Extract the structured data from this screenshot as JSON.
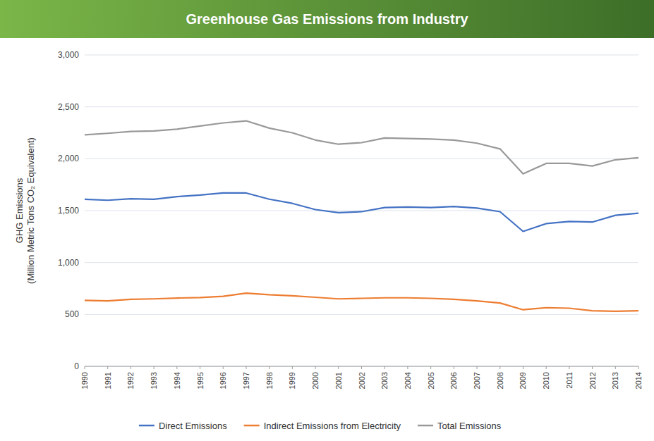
{
  "chart_data": {
    "type": "line",
    "title": "Greenhouse Gas Emissions from Industry",
    "ylabel": "GHG Emissions\n(Million Metric Tons CO₂ Equivalent)",
    "x": [
      1990,
      1991,
      1992,
      1993,
      1994,
      1995,
      1996,
      1997,
      1998,
      1999,
      2000,
      2001,
      2002,
      2003,
      2004,
      2005,
      2006,
      2007,
      2008,
      2009,
      2010,
      2011,
      2012,
      2013,
      2014
    ],
    "xlim": [
      1990,
      2014
    ],
    "xticks": [
      1990,
      1991,
      1992,
      1993,
      1994,
      1995,
      1996,
      1997,
      1998,
      1999,
      2000,
      2001,
      2002,
      2003,
      2004,
      2005,
      2006,
      2007,
      2008,
      2009,
      2010,
      2011,
      2012,
      2013,
      2014
    ],
    "ylim": [
      0,
      3000
    ],
    "yticks": [
      0,
      500,
      {
        "value": 1000,
        "label": "1,000"
      },
      {
        "value": 1500,
        "label": "1,500"
      },
      {
        "value": 2000,
        "label": "2,000"
      },
      {
        "value": 2500,
        "label": "2,500"
      },
      {
        "value": 3000,
        "label": "3,000"
      }
    ],
    "grid": true,
    "legend": "bottom",
    "series": [
      {
        "name": "Direct Emissions",
        "color": "#4472c4",
        "values": [
          1610,
          1600,
          1615,
          1610,
          1635,
          1650,
          1670,
          1670,
          1610,
          1570,
          1510,
          1480,
          1490,
          1530,
          1535,
          1530,
          1540,
          1525,
          1490,
          1300,
          1375,
          1395,
          1390,
          1455,
          1475
        ]
      },
      {
        "name": "Indirect Emissions from Electricity",
        "color": "#ed7d31",
        "values": [
          635,
          630,
          645,
          650,
          658,
          662,
          675,
          705,
          690,
          680,
          665,
          650,
          655,
          660,
          660,
          655,
          645,
          630,
          610,
          545,
          565,
          560,
          535,
          530,
          535
        ]
      },
      {
        "name": "Total Emissions",
        "color": "#999999",
        "values": [
          2230,
          2245,
          2263,
          2268,
          2285,
          2315,
          2345,
          2365,
          2295,
          2250,
          2180,
          2140,
          2155,
          2200,
          2195,
          2190,
          2180,
          2150,
          2095,
          1855,
          1955,
          1955,
          1930,
          1990,
          2010
        ]
      }
    ]
  }
}
